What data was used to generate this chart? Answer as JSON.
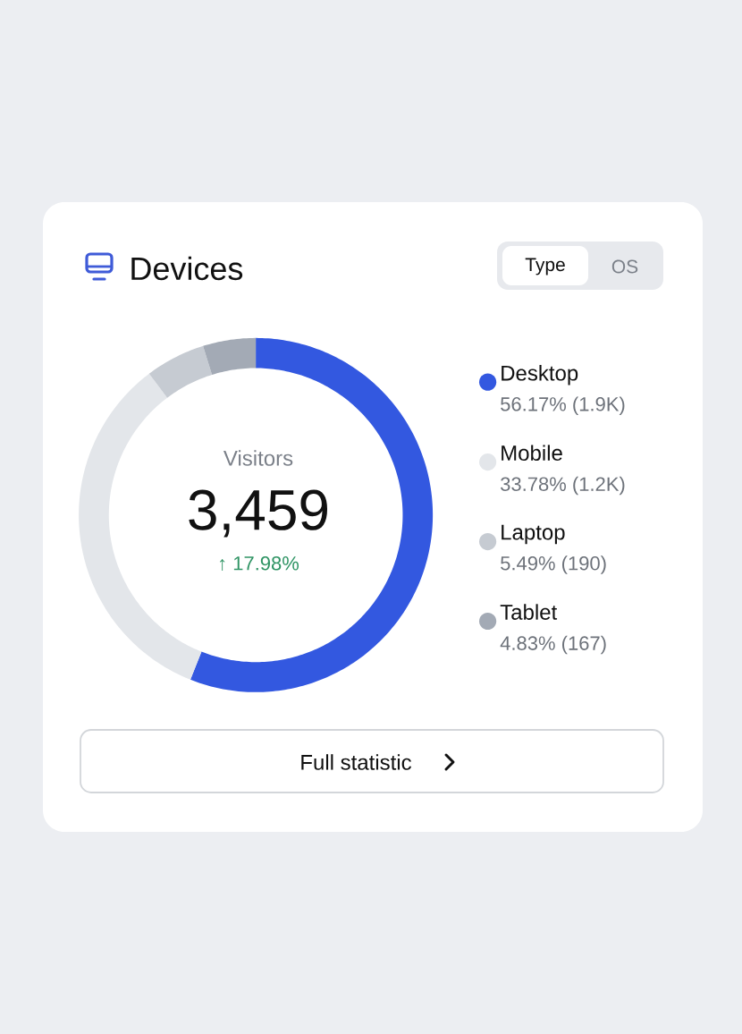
{
  "chart_data": {
    "type": "donut",
    "title": "Devices",
    "categories": [
      "Desktop",
      "Mobile",
      "Laptop",
      "Tablet"
    ],
    "values": [
      56.17,
      33.78,
      5.49,
      4.83
    ],
    "colors": [
      "#3358e0",
      "#e3e6ea",
      "#c6cbd2",
      "#a3aab5"
    ],
    "value_labels": [
      "56.17% (1.9K)",
      "33.78% (1.2K)",
      "5.49% (190)",
      "4.83% (167)"
    ],
    "legend": "right",
    "annotations": [
      "Visitors",
      "3,459",
      "↑ 17.98%",
      "Type",
      "OS",
      "Full statistic"
    ]
  }
}
